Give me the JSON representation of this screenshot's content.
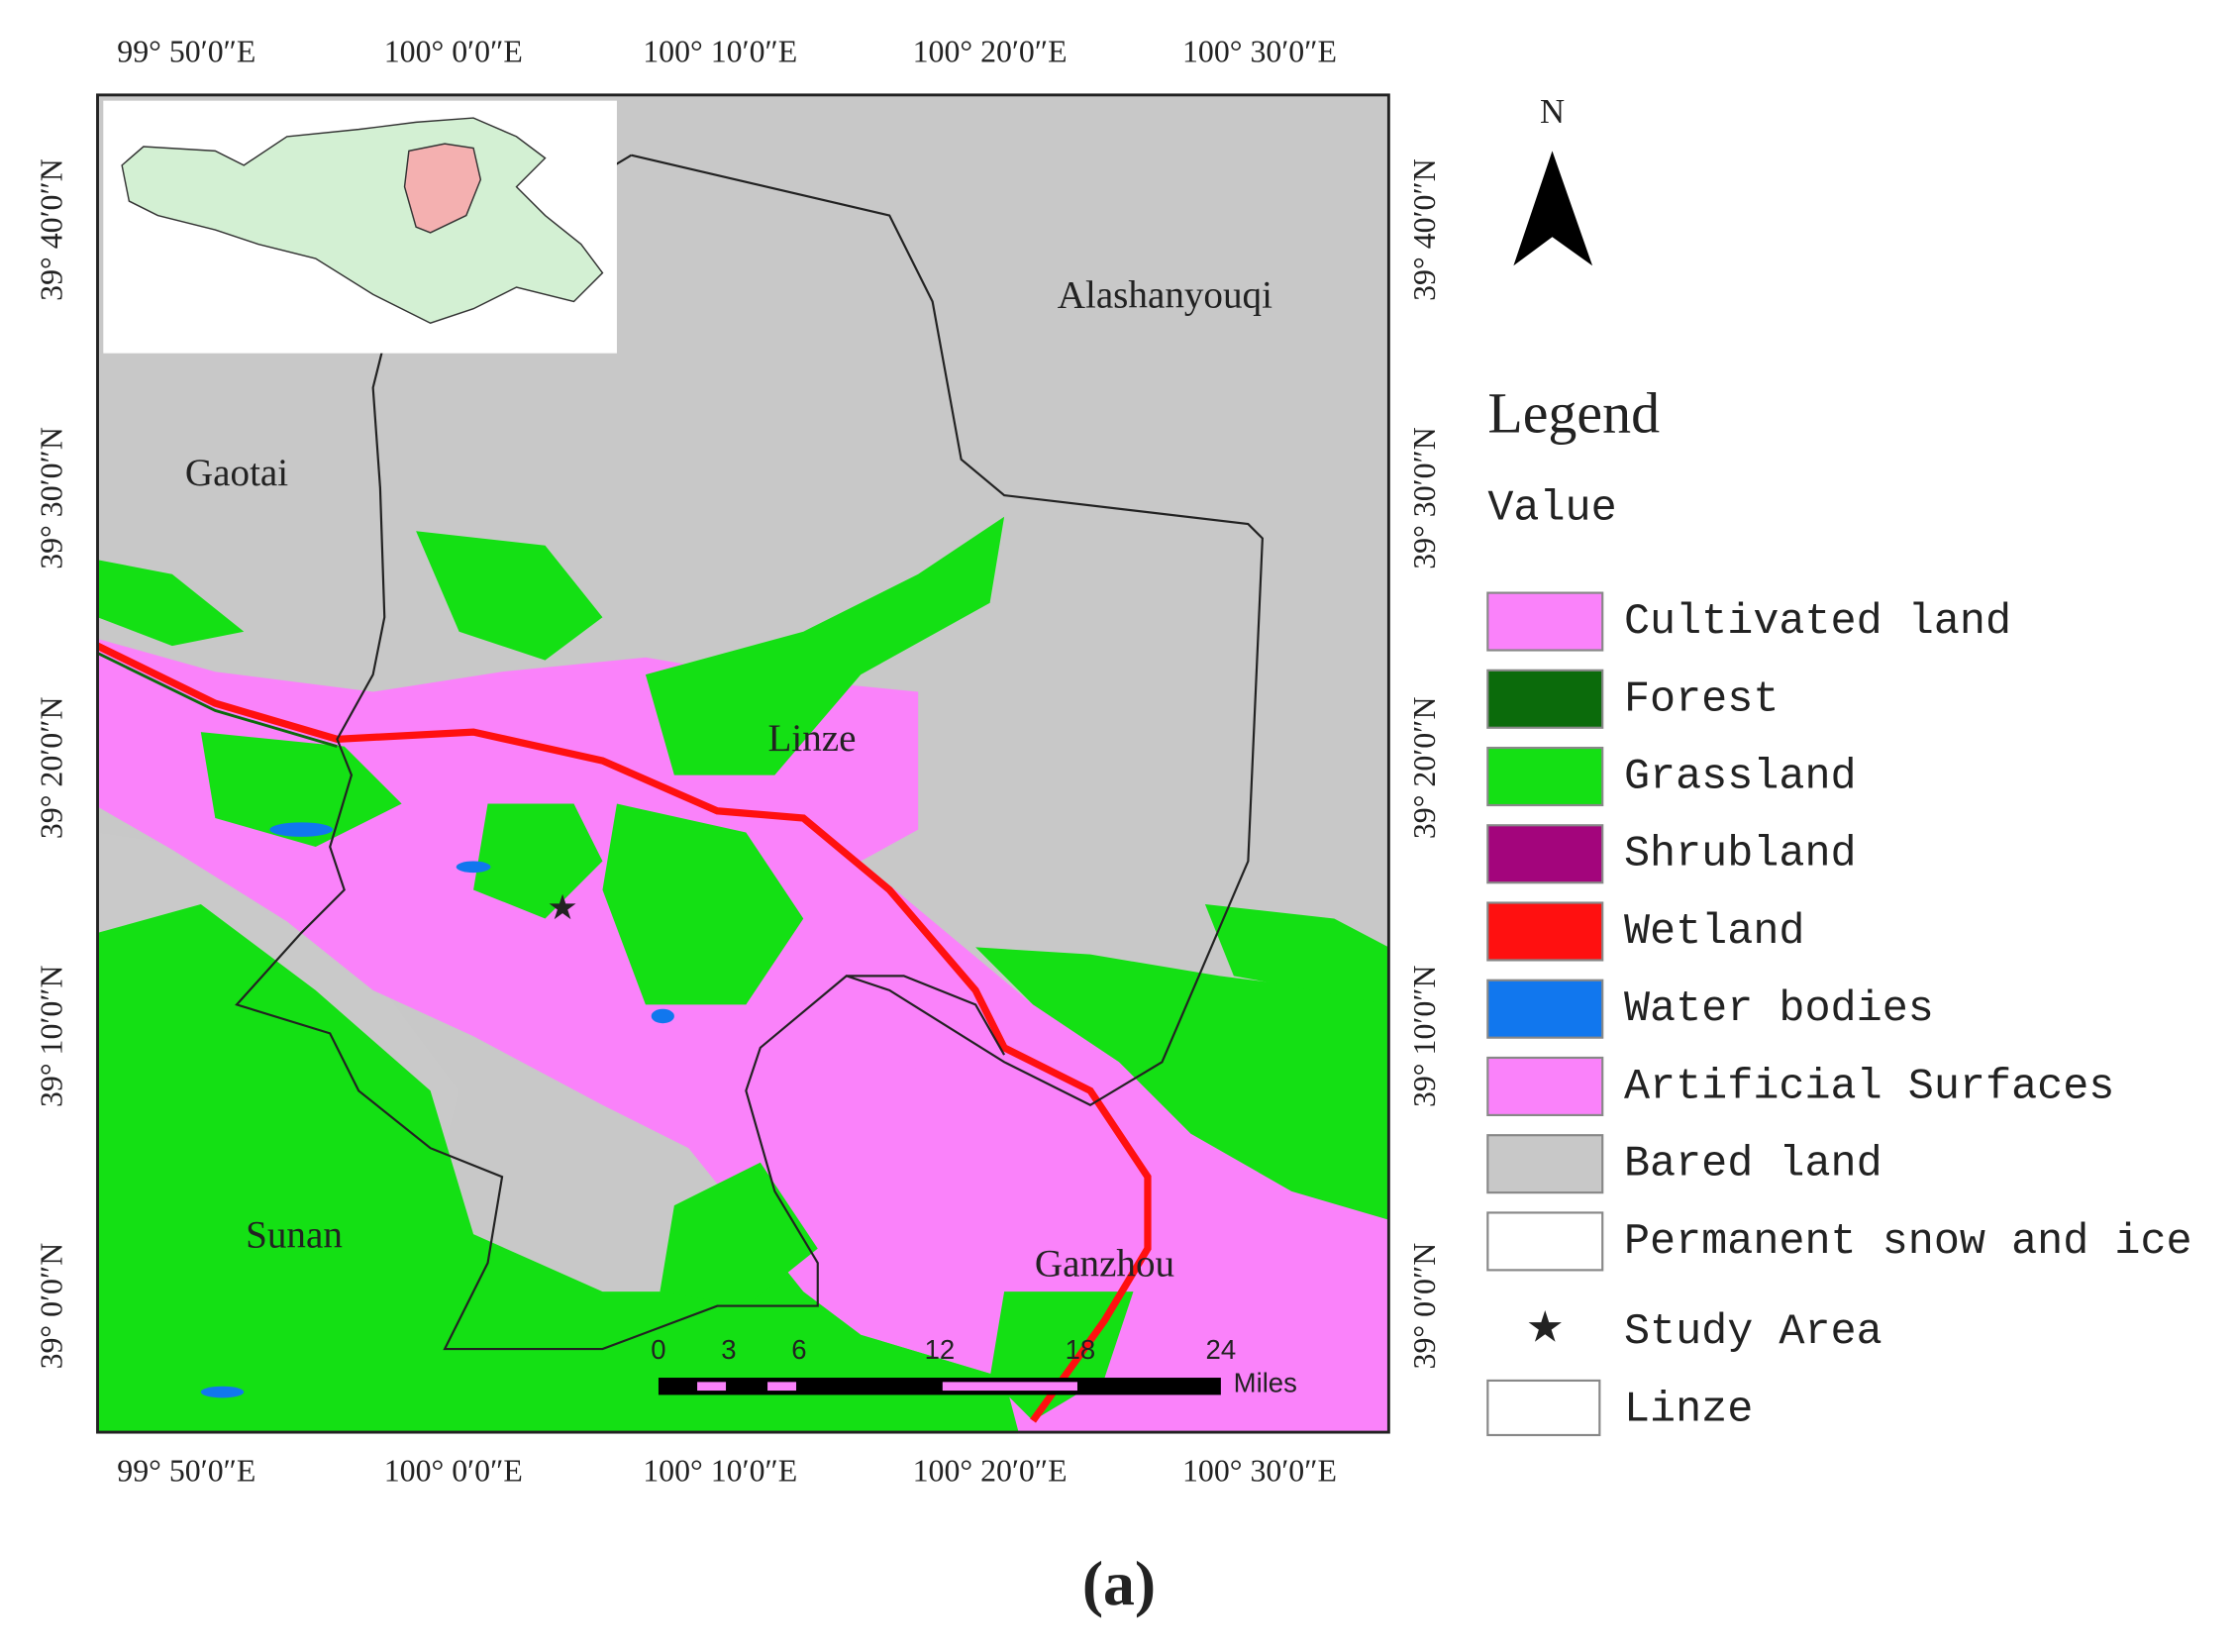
{
  "map": {
    "lon_labels": [
      "99°  50′0″E",
      "100°  0′0″E",
      "100°  10′0″E",
      "100°  20′0″E",
      "100°  30′0″E"
    ],
    "lat_labels": [
      "39°  40′0″N",
      "39°  30′0″N",
      "39°  20′0″N",
      "39°  10′0″N",
      "39°  0′0″N"
    ],
    "places": {
      "alashanyouqi": "Alashanyouqi",
      "gaotai": "Gaotai",
      "linze": "Linze",
      "sunan": "Sunan",
      "ganzhou": "Ganzhou"
    },
    "north": "N",
    "scale": {
      "ticks": [
        "0",
        "3",
        "6",
        "12",
        "18",
        "24"
      ],
      "unit": "Miles"
    },
    "legend": {
      "title": "Legend",
      "subtitle": "Value",
      "items": [
        {
          "label": "Cultivated land",
          "color": "#fa82fa"
        },
        {
          "label": "Forest",
          "color": "#0b6b0b"
        },
        {
          "label": "Grassland",
          "color": "#14e014"
        },
        {
          "label": "Shrubland",
          "color": "#a3057c"
        },
        {
          "label": "Wetland",
          "color": "#ff1010"
        },
        {
          "label": "Water bodies",
          "color": "#1177ee"
        },
        {
          "label": "Artificial Surfaces",
          "color": "#fa82fa"
        },
        {
          "label": "Bared land",
          "color": "#c8c8c8"
        },
        {
          "label": "Permanent snow and ice",
          "color": "#ffffff"
        }
      ],
      "study_area": "Study Area",
      "boundary": "Linze"
    },
    "caption": "(a)"
  }
}
